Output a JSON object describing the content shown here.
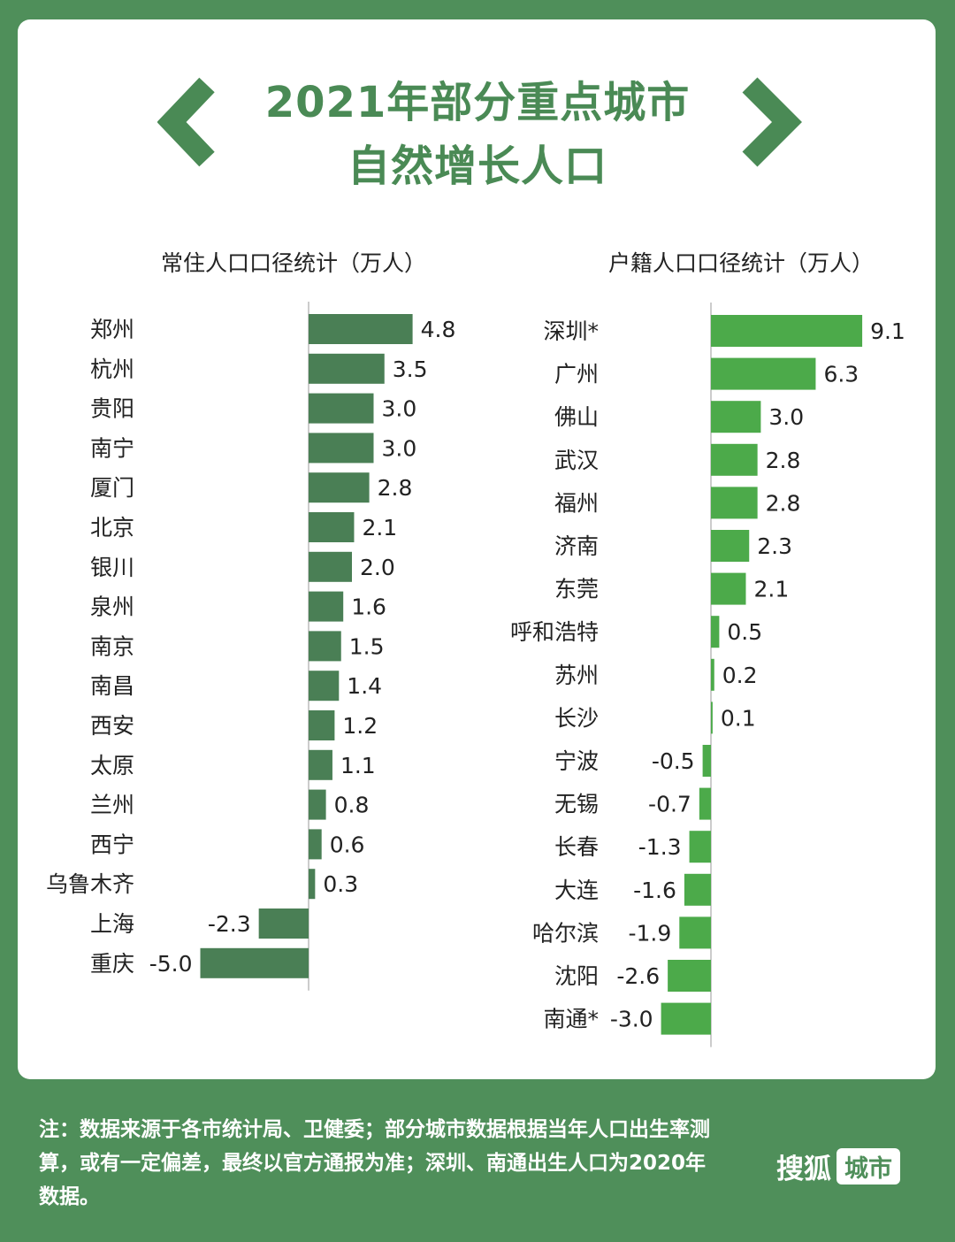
{
  "title": {
    "line1": "2021年部分重点城市",
    "line2": "自然增长人口"
  },
  "colors": {
    "background": "#4f8f5a",
    "left_bar": "#4a7f55",
    "right_bar": "#4caa4a",
    "title": "#4a8a55"
  },
  "chart_data": [
    {
      "type": "bar",
      "orientation": "horizontal",
      "title": "常住人口口径统计（万人）",
      "categories": [
        "郑州",
        "杭州",
        "贵阳",
        "南宁",
        "厦门",
        "北京",
        "银川",
        "泉州",
        "南京",
        "南昌",
        "西安",
        "太原",
        "兰州",
        "西宁",
        "乌鲁木齐",
        "上海",
        "重庆"
      ],
      "values": [
        4.8,
        3.5,
        3.0,
        3.0,
        2.8,
        2.1,
        2.0,
        1.6,
        1.5,
        1.4,
        1.2,
        1.1,
        0.8,
        0.6,
        0.3,
        -2.3,
        -5.0
      ],
      "labels": [
        "4.8",
        "3.5",
        "3.0",
        "3.0",
        "2.8",
        "2.1",
        "2.0",
        "1.6",
        "1.5",
        "1.4",
        "1.2",
        "1.1",
        "0.8",
        "0.6",
        "0.3",
        "-2.3",
        "-5.0"
      ]
    },
    {
      "type": "bar",
      "orientation": "horizontal",
      "title": "户籍人口口径统计（万人）",
      "categories": [
        "深圳*",
        "广州",
        "佛山",
        "武汉",
        "福州",
        "济南",
        "东莞",
        "呼和浩特",
        "苏州",
        "长沙",
        "宁波",
        "无锡",
        "长春",
        "大连",
        "哈尔滨",
        "沈阳",
        "南通*"
      ],
      "values": [
        9.1,
        6.3,
        3.0,
        2.8,
        2.8,
        2.3,
        2.1,
        0.5,
        0.2,
        0.1,
        -0.5,
        -0.7,
        -1.3,
        -1.6,
        -1.9,
        -2.6,
        -3.0
      ],
      "labels": [
        "9.1",
        "6.3",
        "3.0",
        "2.8",
        "2.8",
        "2.3",
        "2.1",
        "0.5",
        "0.2",
        "0.1",
        "-0.5",
        "-0.7",
        "-1.3",
        "-1.6",
        "-1.9",
        "-2.6",
        "-3.0"
      ]
    }
  ],
  "footer": {
    "note": "注：数据来源于各市统计局、卫健委；部分城市数据根据当年人口出生率测算，或有一定偏差，最终以官方通报为准；深圳、南通出生人口为2020年数据。",
    "brand_name": "搜狐",
    "brand_tag": "城市"
  }
}
